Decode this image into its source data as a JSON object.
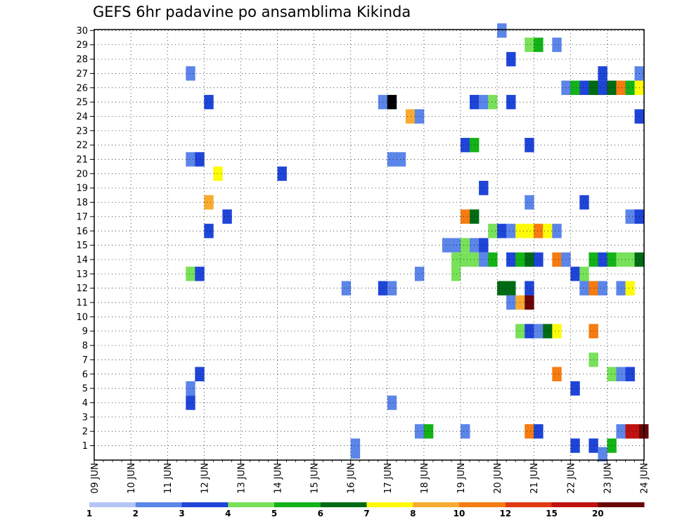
{
  "chart_data": {
    "type": "heatmap",
    "title": "GEFS 6hr padavine po ansamblima Kikinda",
    "x_tick_labels": [
      "09 JUN",
      "10 JUN",
      "11 JUN",
      "12 JUN",
      "13 JUN",
      "14 JUN",
      "15 JUN",
      "16 JUN",
      "17 JUN",
      "18 JUN",
      "19 JUN",
      "20 JUN",
      "21 JUN",
      "22 JUN",
      "23 JUN",
      "24 JUN"
    ],
    "y_tick_labels": [
      "1",
      "2",
      "3",
      "4",
      "5",
      "6",
      "7",
      "8",
      "9",
      "10",
      "11",
      "12",
      "13",
      "14",
      "15",
      "16",
      "17",
      "18",
      "19",
      "20",
      "21",
      "22",
      "23",
      "24",
      "25",
      "26",
      "27",
      "28",
      "29",
      "30"
    ],
    "x_unit": "6-hour steps after 09 JUN 00Z",
    "y_range": [
      1,
      30
    ],
    "grid": true,
    "colorbar": {
      "labels": [
        "1",
        "2",
        "3",
        "4",
        "5",
        "6",
        "7",
        "8",
        "10",
        "12",
        "15",
        "20"
      ],
      "colors": [
        "#b4c6f5",
        "#5b85e8",
        "#1f45d8",
        "#78e15a",
        "#13b318",
        "#006b14",
        "#fdfb0a",
        "#f8ab30",
        "#f57b12",
        "#e03a13",
        "#c01010",
        "#6a0505"
      ]
    },
    "cells": [
      [
        44,
        30,
        1
      ],
      [
        47,
        29,
        3
      ],
      [
        48,
        29,
        4
      ],
      [
        50,
        29,
        1
      ],
      [
        45,
        28,
        2
      ],
      [
        10,
        27,
        1
      ],
      [
        55,
        27,
        2
      ],
      [
        59,
        27,
        1
      ],
      [
        51,
        26,
        1
      ],
      [
        52,
        26,
        4
      ],
      [
        53,
        26,
        2
      ],
      [
        54,
        26,
        5
      ],
      [
        55,
        26,
        2
      ],
      [
        56,
        26,
        5
      ],
      [
        57,
        26,
        8
      ],
      [
        58,
        26,
        4
      ],
      [
        59,
        26,
        6
      ],
      [
        12,
        25,
        2
      ],
      [
        31,
        25,
        1
      ],
      [
        32,
        25,
        12
      ],
      [
        41,
        25,
        2
      ],
      [
        42,
        25,
        1
      ],
      [
        43,
        25,
        3
      ],
      [
        45,
        25,
        2
      ],
      [
        34,
        24,
        7
      ],
      [
        35,
        24,
        1
      ],
      [
        59,
        24,
        2
      ],
      [
        40,
        22,
        2
      ],
      [
        41,
        22,
        4
      ],
      [
        47,
        22,
        2
      ],
      [
        10,
        21,
        1
      ],
      [
        11,
        21,
        2
      ],
      [
        32,
        21,
        1
      ],
      [
        33,
        21,
        1
      ],
      [
        13,
        20,
        6
      ],
      [
        20,
        20,
        2
      ],
      [
        42,
        19,
        2
      ],
      [
        12,
        18,
        7
      ],
      [
        47,
        18,
        1
      ],
      [
        53,
        18,
        2
      ],
      [
        14,
        17,
        2
      ],
      [
        40,
        17,
        8
      ],
      [
        41,
        17,
        5
      ],
      [
        58,
        17,
        1
      ],
      [
        59,
        17,
        2
      ],
      [
        12,
        16,
        2
      ],
      [
        43,
        16,
        3
      ],
      [
        44,
        16,
        2
      ],
      [
        45,
        16,
        1
      ],
      [
        46,
        16,
        6
      ],
      [
        47,
        16,
        6
      ],
      [
        48,
        16,
        8
      ],
      [
        49,
        16,
        6
      ],
      [
        50,
        16,
        1
      ],
      [
        38,
        15,
        1
      ],
      [
        39,
        15,
        1
      ],
      [
        40,
        15,
        3
      ],
      [
        41,
        15,
        1
      ],
      [
        42,
        15,
        2
      ],
      [
        39,
        14,
        3
      ],
      [
        40,
        14,
        3
      ],
      [
        41,
        14,
        3
      ],
      [
        42,
        14,
        1
      ],
      [
        43,
        14,
        4
      ],
      [
        45,
        14,
        2
      ],
      [
        46,
        14,
        4
      ],
      [
        47,
        14,
        5
      ],
      [
        48,
        14,
        2
      ],
      [
        50,
        14,
        8
      ],
      [
        51,
        14,
        1
      ],
      [
        54,
        14,
        4
      ],
      [
        55,
        14,
        2
      ],
      [
        56,
        14,
        4
      ],
      [
        57,
        14,
        3
      ],
      [
        58,
        14,
        3
      ],
      [
        59,
        14,
        5
      ],
      [
        10,
        13,
        3
      ],
      [
        11,
        13,
        2
      ],
      [
        35,
        13,
        1
      ],
      [
        39,
        13,
        3
      ],
      [
        52,
        13,
        2
      ],
      [
        53,
        13,
        3
      ],
      [
        27,
        12,
        1
      ],
      [
        31,
        12,
        2
      ],
      [
        32,
        12,
        1
      ],
      [
        44,
        12,
        5
      ],
      [
        45,
        12,
        5
      ],
      [
        47,
        12,
        2
      ],
      [
        53,
        12,
        1
      ],
      [
        54,
        12,
        8
      ],
      [
        55,
        12,
        1
      ],
      [
        57,
        12,
        1
      ],
      [
        58,
        12,
        6
      ],
      [
        45,
        11,
        1
      ],
      [
        46,
        11,
        7
      ],
      [
        47,
        11,
        11
      ],
      [
        46,
        9,
        3
      ],
      [
        47,
        9,
        2
      ],
      [
        48,
        9,
        1
      ],
      [
        49,
        9,
        5
      ],
      [
        50,
        9,
        6
      ],
      [
        54,
        9,
        8
      ],
      [
        54,
        7,
        3
      ],
      [
        11,
        6,
        2
      ],
      [
        50,
        6,
        8
      ],
      [
        56,
        6,
        3
      ],
      [
        57,
        6,
        1
      ],
      [
        58,
        6,
        2
      ],
      [
        10,
        5,
        1
      ],
      [
        52,
        5,
        2
      ],
      [
        10,
        4,
        2
      ],
      [
        32,
        4,
        1
      ],
      [
        35,
        2,
        1
      ],
      [
        36,
        2,
        4
      ],
      [
        40,
        2,
        1
      ],
      [
        47,
        2,
        8
      ],
      [
        48,
        2,
        2
      ],
      [
        57,
        2,
        1
      ],
      [
        58,
        2,
        10
      ],
      [
        59,
        2,
        10
      ],
      [
        59.5,
        2,
        11
      ],
      [
        28,
        1,
        1
      ],
      [
        52,
        1,
        2
      ],
      [
        54,
        1,
        2
      ],
      [
        56,
        1,
        4
      ],
      [
        28,
        0.6,
        1
      ],
      [
        55,
        0.4,
        1
      ]
    ]
  }
}
